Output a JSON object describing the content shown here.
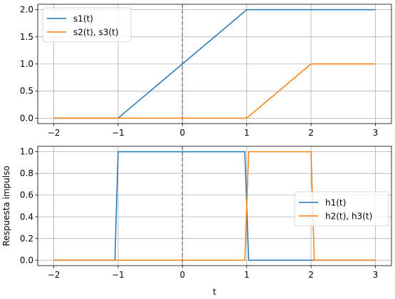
{
  "chart_data": [
    {
      "type": "line",
      "title": "",
      "xlabel": "",
      "ylabel": "",
      "xlim": [
        -2.25,
        3.25
      ],
      "ylim": [
        -0.1,
        2.1
      ],
      "xticks": [
        -2,
        -1,
        0,
        1,
        2,
        3
      ],
      "xtick_labels": [
        "−2",
        "−1",
        "0",
        "1",
        "2",
        "3"
      ],
      "yticks": [
        0.0,
        0.5,
        1.0,
        1.5,
        2.0
      ],
      "ytick_labels": [
        "0.0",
        "0.5",
        "1.0",
        "1.5",
        "2.0"
      ],
      "grid": true,
      "legend_position": "upper-left",
      "vline": {
        "x": 0,
        "color": "#808080",
        "style": "dashed"
      },
      "series": [
        {
          "name": "s1(t)",
          "color": "#1f77b4",
          "x": [
            -2,
            -1,
            1,
            3
          ],
          "y": [
            0,
            0,
            2,
            2
          ]
        },
        {
          "name": "s2(t), s3(t)",
          "color": "#ff7f0e",
          "x": [
            -2,
            1,
            2,
            3
          ],
          "y": [
            0,
            0,
            1,
            1
          ]
        }
      ]
    },
    {
      "type": "line",
      "title": "",
      "xlabel": "t",
      "ylabel": "Respuesta impulso",
      "xlim": [
        -2.25,
        3.25
      ],
      "ylim": [
        -0.05,
        1.05
      ],
      "xticks": [
        -2,
        -1,
        0,
        1,
        2,
        3
      ],
      "xtick_labels": [
        "−2",
        "−1",
        "0",
        "1",
        "2",
        "3"
      ],
      "yticks": [
        0.0,
        0.2,
        0.4,
        0.6,
        0.8,
        1.0
      ],
      "ytick_labels": [
        "0.0",
        "0.2",
        "0.4",
        "0.6",
        "0.8",
        "1.0"
      ],
      "grid": true,
      "legend_position": "center-right",
      "vline": {
        "x": 0,
        "color": "#808080",
        "style": "dashed"
      },
      "series": [
        {
          "name": "h1(t)",
          "color": "#1f77b4",
          "x": [
            -2,
            -1.05,
            -1,
            0.97,
            1.03,
            3
          ],
          "y": [
            0,
            0,
            1,
            1,
            0,
            0
          ]
        },
        {
          "name": "h2(t), h3(t)",
          "color": "#ff7f0e",
          "x": [
            -2,
            0.97,
            1.03,
            2,
            2.05,
            3
          ],
          "y": [
            0,
            0,
            1,
            1,
            0,
            0
          ]
        }
      ]
    }
  ]
}
